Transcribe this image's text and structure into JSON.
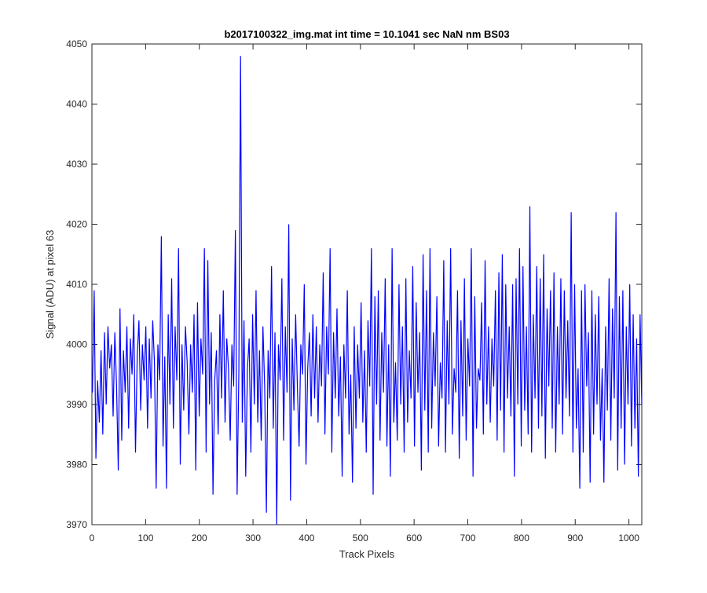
{
  "chart_data": {
    "type": "line",
    "title": "b2017100322_img.mat int time = 10.1041 sec  NaN nm BS03",
    "xlabel": "Track Pixels",
    "ylabel": "Signal (ADU) at pixel 63",
    "xlim": [
      0,
      1024
    ],
    "ylim": [
      3970,
      4050
    ],
    "xticks": [
      0,
      100,
      200,
      300,
      400,
      500,
      600,
      700,
      800,
      900,
      1000
    ],
    "yticks": [
      3970,
      3980,
      3990,
      4000,
      4010,
      4020,
      4030,
      4040,
      4050
    ],
    "grid": false,
    "legend": "none",
    "series": [
      {
        "color": "#0000ff",
        "x_start": 1,
        "x_step": 1,
        "values": [
          3992,
          4009,
          3981,
          3994,
          3987,
          3999,
          3985,
          4002,
          3990,
          4003,
          3996,
          4000,
          3988,
          4002,
          3993,
          3979,
          4006,
          3984,
          3999,
          3992,
          4003,
          3986,
          4001,
          3995,
          4005,
          3982,
          3998,
          4004,
          3989,
          4000,
          3994,
          4003,
          3986,
          4001,
          3991,
          4004,
          3997,
          3976,
          4000,
          3994,
          4018,
          3983,
          3998,
          3976,
          4005,
          3990,
          4011,
          3986,
          4003,
          3994,
          4016,
          3980,
          4000,
          3989,
          4003,
          3997,
          3985,
          4000,
          3992,
          4005,
          3979,
          4007,
          3988,
          4001,
          3995,
          4016,
          3982,
          4014,
          3990,
          4002,
          3975,
          3994,
          3999,
          3985,
          4005,
          3991,
          4009,
          3987,
          4001,
          3996,
          3984,
          4000,
          3993,
          4019,
          3975,
          3995,
          4048,
          3987,
          4004,
          3978,
          3996,
          4001,
          3982,
          4005,
          3990,
          4009,
          3987,
          3999,
          3984,
          4003,
          3993,
          3972,
          3999,
          3991,
          4013,
          3986,
          4002,
          3970,
          4000,
          3994,
          4011,
          3984,
          4003,
          3992,
          4020,
          3974,
          4001,
          3989,
          4005,
          3993,
          3983,
          4000,
          3995,
          4010,
          3980,
          3996,
          4002,
          3988,
          4005,
          3991,
          4003,
          3987,
          4000,
          3993,
          4012,
          3985,
          4003,
          3995,
          4016,
          3982,
          4002,
          3991,
          4006,
          3988,
          3998,
          3978,
          4000,
          3991,
          4009,
          3985,
          3995,
          3977,
          4003,
          3986,
          4000,
          3991,
          4007,
          3987,
          3999,
          3982,
          4004,
          3993,
          4016,
          3975,
          4008,
          3990,
          4009,
          3984,
          4002,
          3992,
          4011,
          3983,
          4000,
          3978,
          4016,
          3987,
          3997,
          3984,
          4010,
          3990,
          4003,
          3982,
          4011,
          3987,
          3999,
          3991,
          4013,
          3983,
          4007,
          3992,
          4002,
          3979,
          4015,
          3989,
          4009,
          3982,
          4016,
          3986,
          4002,
          3993,
          4008,
          3983,
          3997,
          3991,
          4014,
          3982,
          4004,
          3990,
          4016,
          3985,
          3996,
          3992,
          4009,
          3981,
          4004,
          3988,
          4011,
          3984,
          4001,
          3993,
          4016,
          3978,
          4008,
          3986,
          3996,
          3994,
          4007,
          3985,
          4014,
          3990,
          4003,
          3987,
          4001,
          3993,
          4009,
          3984,
          4012,
          3989,
          4015,
          3982,
          4010,
          3991,
          4003,
          3988,
          4010,
          3978,
          4011,
          3990,
          4016,
          3983,
          4013,
          3989,
          4003,
          3985,
          4023,
          3982,
          4005,
          3991,
          4013,
          3986,
          4011,
          3988,
          4015,
          3981,
          4006,
          3993,
          4009,
          3986,
          4012,
          3982,
          4003,
          3990,
          4011,
          3985,
          4009,
          3991,
          4004,
          3988,
          4022,
          3982,
          4010,
          3986,
          3996,
          3976,
          4009,
          3982,
          4010,
          3993,
          4002,
          3977,
          4009,
          3985,
          4005,
          3990,
          4008,
          3984,
          3996,
          3977,
          4003,
          3989,
          4011,
          3984,
          4006,
          3991,
          4022,
          3979,
          4008,
          3986,
          4009,
          3980,
          4003,
          3990,
          4010,
          3983,
          4005,
          3986,
          4001,
          3978,
          4005,
          3990
        ]
      }
    ]
  }
}
